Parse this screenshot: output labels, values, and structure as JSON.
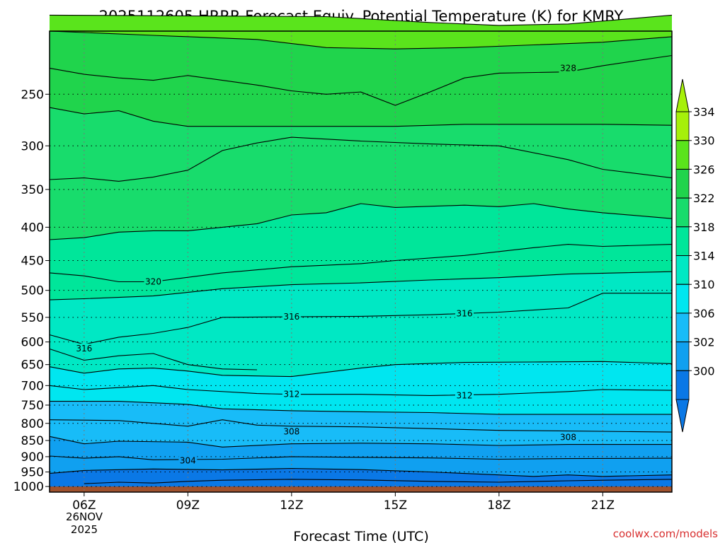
{
  "chart_data": {
    "type": "contour",
    "title": "2025112605 HRRR Forecast Equiv. Potential Temperature (K) for KMRY",
    "xlabel": "Forecast Time (UTC)",
    "ylabel": "",
    "x_ticks": [
      "06Z",
      "09Z",
      "12Z",
      "15Z",
      "18Z",
      "21Z"
    ],
    "x_date_label": [
      "26NOV",
      "2025"
    ],
    "y_ticks": [
      250,
      300,
      350,
      400,
      450,
      500,
      550,
      600,
      650,
      700,
      750,
      800,
      850,
      900,
      950,
      1000
    ],
    "xlim": [
      "05Z",
      "23Z"
    ],
    "ylim": [
      1020,
      200
    ],
    "y_scale": "log",
    "y_inverted": true,
    "grid": "dotted",
    "terrain_color": "#a0522d",
    "colorbar": {
      "levels": [
        300,
        302,
        306,
        310,
        314,
        318,
        322,
        326,
        330,
        334
      ],
      "labels": [
        "334",
        "330",
        "326",
        "322",
        "318",
        "314",
        "310",
        "306",
        "302",
        "300"
      ],
      "colors": [
        "#0a78e6",
        "#10a0f0",
        "#18bcf8",
        "#00e6f0",
        "#00e8c4",
        "#00e69a",
        "#18dc6c",
        "#20d44c",
        "#5ae41c",
        "#a6f00a"
      ],
      "extend": "both"
    },
    "contour_labels": [
      {
        "text": "328",
        "time": "20Z",
        "p": 228
      },
      {
        "text": "320",
        "time": "08Z",
        "p": 485
      },
      {
        "text": "316",
        "time": "12Z",
        "p": 549
      },
      {
        "text": "316",
        "time": "17Z",
        "p": 543
      },
      {
        "text": "316",
        "time": "06Z",
        "p": 614
      },
      {
        "text": "312",
        "time": "12Z",
        "p": 722
      },
      {
        "text": "312",
        "time": "17Z",
        "p": 725
      },
      {
        "text": "308",
        "time": "12Z",
        "p": 824
      },
      {
        "text": "308",
        "time": "20Z",
        "p": 840
      },
      {
        "text": "304",
        "time": "09Z",
        "p": 913
      }
    ],
    "series": [
      {
        "value": 300,
        "points": [
          [
            "06Z",
            990
          ],
          [
            "07Z",
            985
          ],
          [
            "08Z",
            988
          ],
          [
            "09Z",
            982
          ],
          [
            "10Z",
            978
          ],
          [
            "12Z",
            975
          ],
          [
            "14Z",
            977
          ],
          [
            "16Z",
            982
          ],
          [
            "18Z",
            985
          ],
          [
            "20Z",
            980
          ],
          [
            "21Z",
            978
          ],
          [
            "23Z",
            975
          ]
        ]
      },
      {
        "value": 302,
        "points": [
          [
            "05Z",
            955
          ],
          [
            "06Z",
            945
          ],
          [
            "08Z",
            940
          ],
          [
            "10Z",
            943
          ],
          [
            "12Z",
            938
          ],
          [
            "14Z",
            942
          ],
          [
            "16Z",
            950
          ],
          [
            "18Z",
            960
          ],
          [
            "19Z",
            965
          ],
          [
            "20Z",
            960
          ],
          [
            "21Z",
            965
          ],
          [
            "23Z",
            960
          ]
        ]
      },
      {
        "value": 304,
        "points": [
          [
            "05Z",
            898
          ],
          [
            "06Z",
            905
          ],
          [
            "07Z",
            900
          ],
          [
            "08Z",
            910
          ],
          [
            "10Z",
            908
          ],
          [
            "12Z",
            900
          ],
          [
            "14Z",
            902
          ],
          [
            "16Z",
            904
          ],
          [
            "18Z",
            908
          ],
          [
            "20Z",
            906
          ],
          [
            "23Z",
            905
          ]
        ]
      },
      {
        "value": 306,
        "points": [
          [
            "05Z",
            838
          ],
          [
            "06Z",
            860
          ],
          [
            "07Z",
            852
          ],
          [
            "09Z",
            855
          ],
          [
            "10Z",
            870
          ],
          [
            "12Z",
            860
          ],
          [
            "14Z",
            858
          ],
          [
            "16Z",
            860
          ],
          [
            "18Z",
            865
          ],
          [
            "20Z",
            862
          ],
          [
            "23Z",
            862
          ]
        ]
      },
      {
        "value": 308,
        "points": [
          [
            "05Z",
            790
          ],
          [
            "07Z",
            792
          ],
          [
            "08Z",
            800
          ],
          [
            "09Z",
            808
          ],
          [
            "10Z",
            790
          ],
          [
            "11Z",
            805
          ],
          [
            "12Z",
            808
          ],
          [
            "14Z",
            810
          ],
          [
            "16Z",
            815
          ],
          [
            "18Z",
            820
          ],
          [
            "20Z",
            822
          ],
          [
            "23Z",
            825
          ]
        ]
      },
      {
        "value": 310,
        "points": [
          [
            "05Z",
            740
          ],
          [
            "07Z",
            740
          ],
          [
            "09Z",
            748
          ],
          [
            "10Z",
            760
          ],
          [
            "12Z",
            765
          ],
          [
            "14Z",
            768
          ],
          [
            "16Z",
            770
          ],
          [
            "18Z",
            775
          ],
          [
            "20Z",
            775
          ],
          [
            "23Z",
            775
          ]
        ]
      },
      {
        "value": 312,
        "points": [
          [
            "05Z",
            700
          ],
          [
            "06Z",
            710
          ],
          [
            "07Z",
            705
          ],
          [
            "08Z",
            700
          ],
          [
            "09Z",
            710
          ],
          [
            "11Z",
            720
          ],
          [
            "12Z",
            722
          ],
          [
            "14Z",
            722
          ],
          [
            "16Z",
            725
          ],
          [
            "18Z",
            722
          ],
          [
            "20Z",
            715
          ],
          [
            "21Z",
            710
          ],
          [
            "23Z",
            712
          ]
        ]
      },
      {
        "value": 314,
        "points": [
          [
            "05Z",
            655
          ],
          [
            "06Z",
            670
          ],
          [
            "07Z",
            660
          ],
          [
            "08Z",
            658
          ],
          [
            "09Z",
            665
          ],
          [
            "10Z",
            675
          ],
          [
            "12Z",
            678
          ],
          [
            "14Z",
            658
          ],
          [
            "15Z",
            650
          ],
          [
            "17Z",
            645
          ],
          [
            "19Z",
            644
          ],
          [
            "21Z",
            643
          ],
          [
            "23Z",
            648
          ]
        ]
      },
      {
        "value": 315,
        "points": [
          [
            "05Z",
            615
          ],
          [
            "06Z",
            640
          ],
          [
            "07Z",
            630
          ],
          [
            "08Z",
            625
          ],
          [
            "09Z",
            650
          ],
          [
            "10Z",
            660
          ],
          [
            "11Z",
            662
          ]
        ]
      },
      {
        "value": 316,
        "points": [
          [
            "05Z",
            585
          ],
          [
            "06Z",
            605
          ],
          [
            "07Z",
            590
          ],
          [
            "08Z",
            582
          ],
          [
            "09Z",
            570
          ],
          [
            "10Z",
            550
          ],
          [
            "12Z",
            549
          ],
          [
            "14Z",
            548
          ],
          [
            "16Z",
            545
          ],
          [
            "18Z",
            540
          ],
          [
            "20Z",
            532
          ],
          [
            "21Z",
            505
          ],
          [
            "23Z",
            505
          ]
        ]
      },
      {
        "value": 318,
        "points": [
          [
            "05Z",
            517
          ],
          [
            "06Z",
            515
          ],
          [
            "08Z",
            510
          ],
          [
            "10Z",
            497
          ],
          [
            "12Z",
            490
          ],
          [
            "14Z",
            487
          ],
          [
            "16Z",
            482
          ],
          [
            "18Z",
            478
          ],
          [
            "20Z",
            472
          ],
          [
            "23Z",
            468
          ]
        ]
      },
      {
        "value": 320,
        "points": [
          [
            "05Z",
            470
          ],
          [
            "06Z",
            475
          ],
          [
            "07Z",
            485
          ],
          [
            "08Z",
            485
          ],
          [
            "10Z",
            470
          ],
          [
            "12Z",
            460
          ],
          [
            "14Z",
            455
          ],
          [
            "15Z",
            450
          ],
          [
            "17Z",
            442
          ],
          [
            "19Z",
            430
          ],
          [
            "20Z",
            425
          ],
          [
            "21Z",
            428
          ],
          [
            "23Z",
            425
          ]
        ]
      },
      {
        "value": 322,
        "points": [
          [
            "05Z",
            418
          ],
          [
            "06Z",
            415
          ],
          [
            "07Z",
            407
          ],
          [
            "08Z",
            405
          ],
          [
            "09Z",
            405
          ],
          [
            "10Z",
            400
          ],
          [
            "11Z",
            395
          ],
          [
            "12Z",
            383
          ],
          [
            "13Z",
            380
          ],
          [
            "14Z",
            368
          ],
          [
            "15Z",
            373
          ],
          [
            "17Z",
            370
          ],
          [
            "18Z",
            372
          ],
          [
            "19Z",
            368
          ],
          [
            "20Z",
            375
          ],
          [
            "21Z",
            380
          ],
          [
            "23Z",
            388
          ]
        ]
      },
      {
        "value": 324,
        "points": [
          [
            "05Z",
            338
          ],
          [
            "06Z",
            336
          ],
          [
            "07Z",
            340
          ],
          [
            "08Z",
            335
          ],
          [
            "09Z",
            327
          ],
          [
            "10Z",
            305
          ],
          [
            "11Z",
            297
          ],
          [
            "12Z",
            291
          ],
          [
            "14Z",
            295
          ],
          [
            "16Z",
            298
          ],
          [
            "18Z",
            300
          ],
          [
            "20Z",
            315
          ],
          [
            "21Z",
            326
          ],
          [
            "23Z",
            336
          ]
        ]
      },
      {
        "value": 326,
        "points": [
          [
            "05Z",
            262
          ],
          [
            "06Z",
            268
          ],
          [
            "07Z",
            265
          ],
          [
            "08Z",
            275
          ],
          [
            "09Z",
            280
          ],
          [
            "11Z",
            280
          ],
          [
            "13Z",
            280
          ],
          [
            "15Z",
            280
          ],
          [
            "17Z",
            278
          ],
          [
            "19Z",
            278
          ],
          [
            "21Z",
            278
          ],
          [
            "23Z",
            279
          ]
        ]
      },
      {
        "value": 328,
        "points": [
          [
            "05Z",
            228
          ],
          [
            "06Z",
            233
          ],
          [
            "07Z",
            236
          ],
          [
            "08Z",
            238
          ],
          [
            "09Z",
            234
          ],
          [
            "10Z",
            238
          ],
          [
            "11Z",
            242
          ],
          [
            "12Z",
            247
          ],
          [
            "13Z",
            250
          ],
          [
            "14Z",
            248
          ],
          [
            "15Z",
            260
          ],
          [
            "16Z",
            248
          ],
          [
            "17Z",
            236
          ],
          [
            "18Z",
            232
          ],
          [
            "20Z",
            231
          ],
          [
            "21Z",
            226
          ],
          [
            "23Z",
            218
          ]
        ]
      },
      {
        "value": 330,
        "points": [
          [
            "05Z",
            200
          ],
          [
            "08Z",
            203
          ],
          [
            "11Z",
            206
          ],
          [
            "13Z",
            212
          ],
          [
            "15Z",
            213
          ],
          [
            "17Z",
            212
          ],
          [
            "19Z",
            210
          ],
          [
            "21Z",
            208
          ],
          [
            "23Z",
            204
          ]
        ]
      },
      {
        "value": 332,
        "points": [
          [
            "05Z",
            189
          ],
          [
            "13Z",
            190
          ],
          [
            "16Z",
            194
          ],
          [
            "18Z",
            196
          ],
          [
            "20Z",
            195
          ],
          [
            "22Z",
            191
          ],
          [
            "23Z",
            189
          ]
        ]
      }
    ]
  },
  "credit": "coolwx.com/models"
}
